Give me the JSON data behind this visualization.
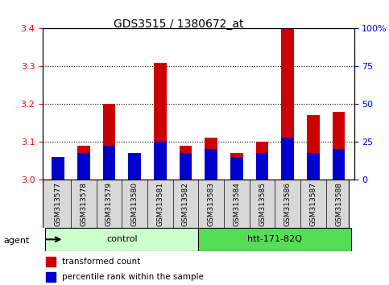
{
  "title": "GDS3515 / 1380672_at",
  "samples": [
    "GSM313577",
    "GSM313578",
    "GSM313579",
    "GSM313580",
    "GSM313581",
    "GSM313582",
    "GSM313583",
    "GSM313584",
    "GSM313585",
    "GSM313586",
    "GSM313587",
    "GSM313588"
  ],
  "transformed_count": [
    3.03,
    3.09,
    3.2,
    3.06,
    3.31,
    3.09,
    3.11,
    3.07,
    3.1,
    3.4,
    3.17,
    3.18
  ],
  "percentile_rank": [
    0.06,
    0.07,
    0.09,
    0.07,
    0.1,
    0.07,
    0.08,
    0.06,
    0.07,
    0.11,
    0.07,
    0.08
  ],
  "y_min": 3.0,
  "y_max": 3.4,
  "y_ticks": [
    3.0,
    3.1,
    3.2,
    3.3,
    3.4
  ],
  "y2_tick_labels": [
    "0",
    "25",
    "50",
    "75",
    "100%"
  ],
  "bar_color_red": "#cc0000",
  "bar_color_blue": "#0000cc",
  "agent_groups": [
    {
      "label": "control",
      "start": 0,
      "end": 5,
      "color": "#ccffcc"
    },
    {
      "label": "htt-171-82Q",
      "start": 6,
      "end": 11,
      "color": "#55dd55"
    }
  ],
  "bar_width": 0.5,
  "xlabel_color": "red",
  "y2_label_color": "blue",
  "agent_label": "agent",
  "legend_items": [
    {
      "label": "transformed count",
      "color": "#cc0000"
    },
    {
      "label": "percentile rank within the sample",
      "color": "#0000cc"
    }
  ]
}
